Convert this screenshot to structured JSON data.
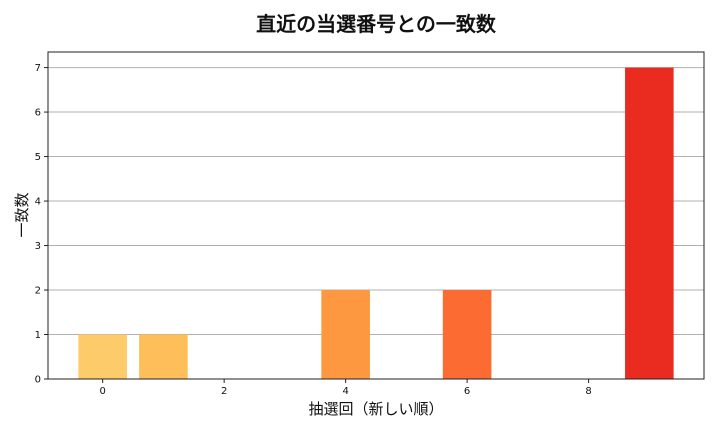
{
  "chart_data": {
    "type": "bar",
    "title": "直近の当選番号との一致数",
    "xlabel": "抽選回（新しい順）",
    "ylabel": "一致数",
    "x": [
      0,
      1,
      2,
      3,
      4,
      5,
      6,
      7,
      8,
      9
    ],
    "values": [
      1,
      1,
      0,
      0,
      2,
      0,
      2,
      0,
      0,
      7
    ],
    "colors": [
      "#fecb6b",
      "#febf5a",
      "#feb24c",
      "#fda446",
      "#fd9740",
      "#fd8138",
      "#fc6b31",
      "#f55129",
      "#f33c25",
      "#ea2b20"
    ],
    "xticks": [
      0,
      2,
      4,
      6,
      8
    ],
    "yticks": [
      0,
      1,
      2,
      3,
      4,
      5,
      6,
      7
    ],
    "xlim": [
      -0.9,
      9.9
    ],
    "ylim": [
      0,
      7.35
    ],
    "grid": "horizontal"
  }
}
